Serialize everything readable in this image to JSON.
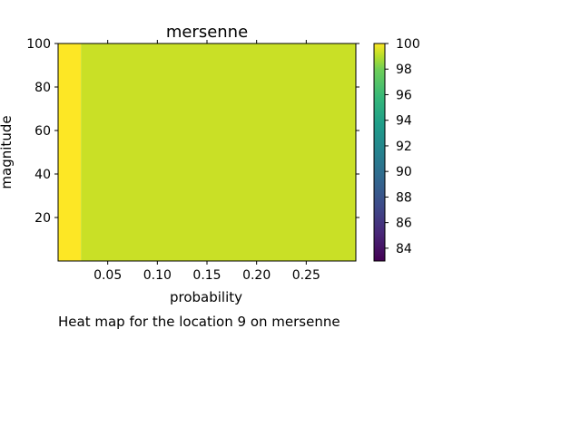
{
  "chart_data": {
    "type": "heatmap",
    "title": "mersenne",
    "xlabel": "probability",
    "ylabel": "magnitude",
    "caption": "Heat map for the location 9 on mersenne",
    "xlim": [
      0.0,
      0.3
    ],
    "ylim": [
      0,
      100
    ],
    "x_ticks": [
      "0.05",
      "0.10",
      "0.15",
      "0.20",
      "0.25"
    ],
    "y_ticks": [
      "20",
      "40",
      "60",
      "80",
      "100"
    ],
    "regions": [
      {
        "x_range": [
          0.0,
          0.023
        ],
        "value": 100
      },
      {
        "x_range": [
          0.023,
          0.3
        ],
        "value": 98.6
      }
    ],
    "colorbar": {
      "range": [
        83,
        100
      ],
      "ticks": [
        "84",
        "86",
        "88",
        "90",
        "92",
        "94",
        "96",
        "98",
        "100"
      ],
      "colormap": "viridis"
    }
  }
}
